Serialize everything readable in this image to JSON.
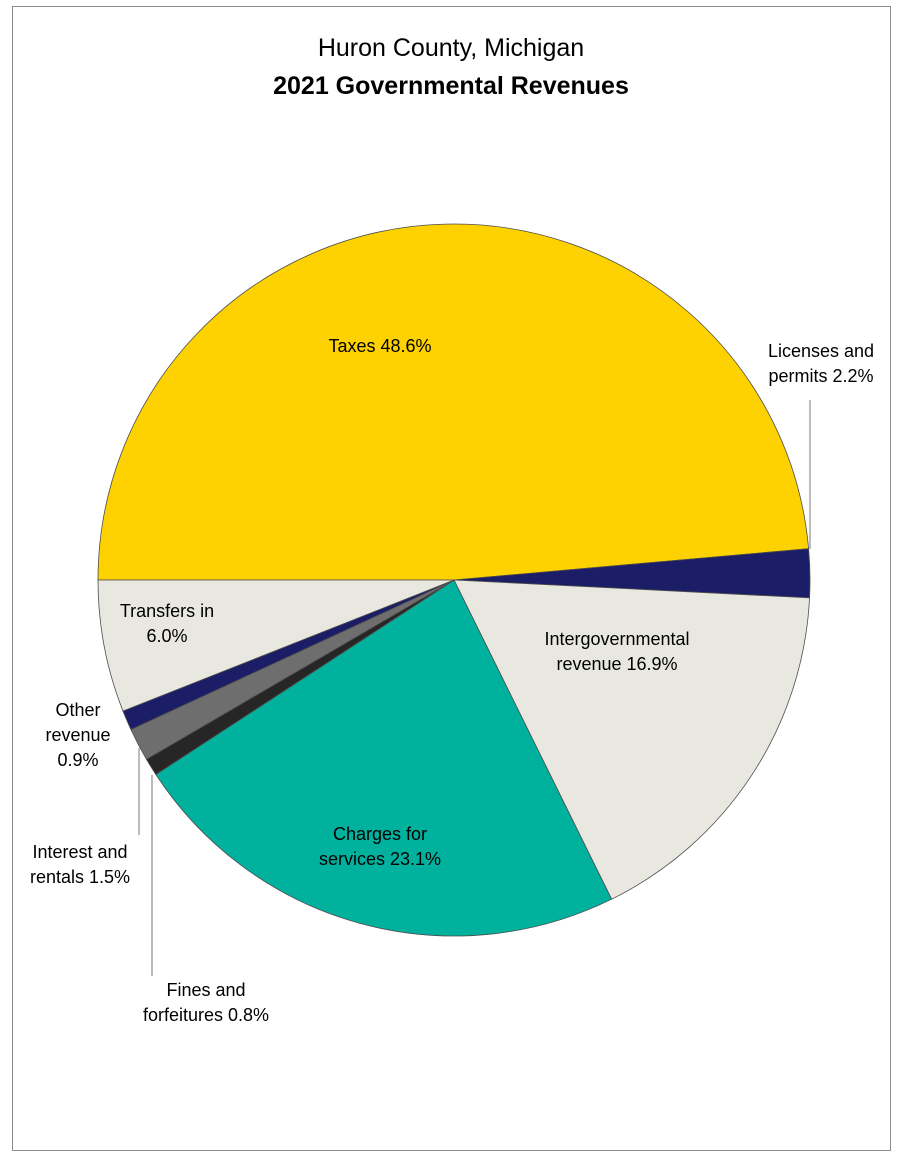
{
  "chart_data": {
    "type": "pie",
    "title": "Huron County, Michigan",
    "subtitle": "2021 Governmental Revenues",
    "slices": [
      {
        "label_lines": [
          "Taxes 48.6%"
        ],
        "name": "Taxes",
        "value": 48.6,
        "color": "#FDD200"
      },
      {
        "label_lines": [
          "Licenses and",
          "permits 2.2%"
        ],
        "name": "Licenses and permits",
        "value": 2.2,
        "color": "#1C1D67"
      },
      {
        "label_lines": [
          "Intergovernmental",
          "revenue 16.9%"
        ],
        "name": "Intergovernmental revenue",
        "value": 16.9,
        "color": "#E9E8E0"
      },
      {
        "label_lines": [
          "Charges for",
          "services 23.1%"
        ],
        "name": "Charges for services",
        "value": 23.1,
        "color": "#00B19E"
      },
      {
        "label_lines": [
          "Fines and",
          "forfeitures 0.8%"
        ],
        "name": "Fines and forfeitures",
        "value": 0.8,
        "color": "#262626"
      },
      {
        "label_lines": [
          "Interest and",
          "rentals 1.5%"
        ],
        "name": "Interest and rentals",
        "value": 1.5,
        "color": "#6E6E6E"
      },
      {
        "label_lines": [
          "Other",
          "revenue",
          "0.9%"
        ],
        "name": "Other revenue",
        "value": 0.9,
        "color": "#1C1D67"
      },
      {
        "label_lines": [
          "Transfers in",
          "6.0%"
        ],
        "name": "Transfers in",
        "value": 6.0,
        "color": "#E9E8E0"
      }
    ]
  }
}
